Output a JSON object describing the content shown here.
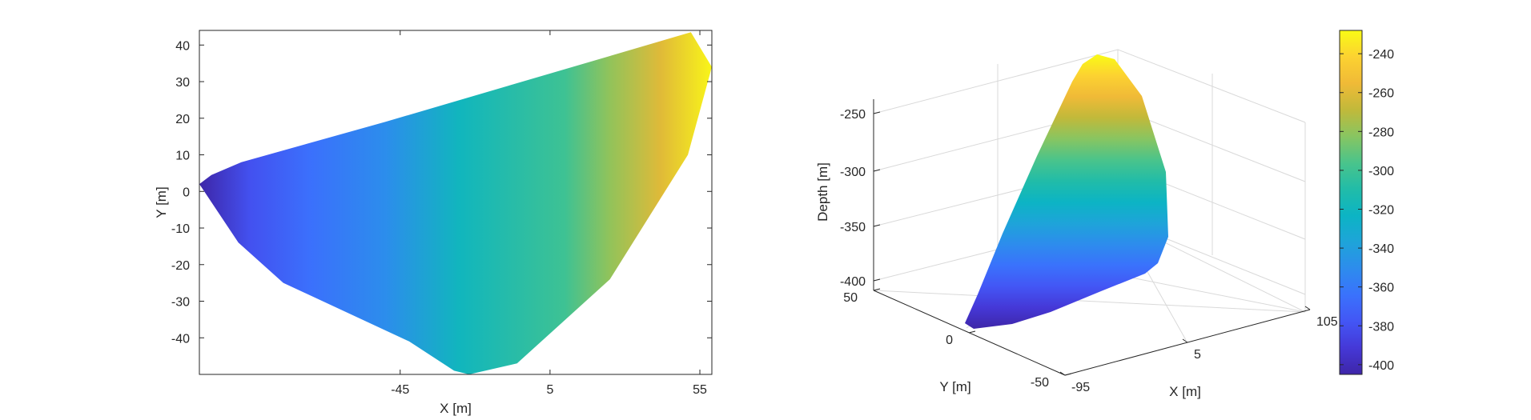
{
  "chart_data": [
    {
      "type": "heatmap",
      "view": "2D top view (X-Y), surface colored by depth",
      "xlabel": "X [m]",
      "ylabel": "Y [m]",
      "xticks": [
        -45,
        5,
        55
      ],
      "yticks": [
        -40,
        -30,
        -20,
        -10,
        0,
        10,
        20,
        30,
        40
      ],
      "xlim": [
        -112,
        59
      ],
      "ylim": [
        -50,
        44
      ],
      "grid": false,
      "boundary": [
        {
          "x": -112,
          "y": 2
        },
        {
          "x": -108,
          "y": 4.5
        },
        {
          "x": -98,
          "y": 8
        },
        {
          "x": -50,
          "y": 19
        },
        {
          "x": 52,
          "y": 43.5
        },
        {
          "x": 59,
          "y": 34
        },
        {
          "x": 51,
          "y": 10
        },
        {
          "x": 25,
          "y": -24
        },
        {
          "x": -6,
          "y": -47
        },
        {
          "x": -22,
          "y": -50
        },
        {
          "x": -27,
          "y": -49
        },
        {
          "x": -42,
          "y": -41
        },
        {
          "x": -84,
          "y": -25
        },
        {
          "x": -99,
          "y": -14
        },
        {
          "x": -112,
          "y": 2
        }
      ],
      "depth_gradient_along_x": [
        {
          "x": -112,
          "depth": -405
        },
        {
          "x": -95,
          "depth": -380
        },
        {
          "x": -75,
          "depth": -365
        },
        {
          "x": -50,
          "depth": -350
        },
        {
          "x": -25,
          "depth": -320
        },
        {
          "x": 10,
          "depth": -300
        },
        {
          "x": 25,
          "depth": -280
        },
        {
          "x": 42,
          "depth": -260
        },
        {
          "x": 59,
          "depth": -230
        }
      ]
    },
    {
      "type": "surface3d",
      "xlabel": "X [m]",
      "ylabel": "Y [m]",
      "zlabel": "Depth [m]",
      "xticks": [
        -95,
        5,
        105
      ],
      "yticks": [
        -50,
        0,
        50
      ],
      "zticks": [
        -400,
        -350,
        -300,
        -250
      ],
      "grid": true
    },
    {
      "type": "colorbar",
      "colormap": "parula",
      "range": [
        -405,
        -228
      ],
      "ticks": [
        -400,
        -380,
        -360,
        -340,
        -320,
        -300,
        -280,
        -260,
        -240
      ]
    }
  ],
  "colormap_stops": [
    "#3e26a8",
    "#4538d7",
    "#4356f5",
    "#3a72fc",
    "#2d8ced",
    "#1ea4d9",
    "#0cb4c4",
    "#21bca8",
    "#4ac48b",
    "#88c561",
    "#c1b93a",
    "#f0ba37",
    "#fcd231",
    "#f9fb15"
  ]
}
